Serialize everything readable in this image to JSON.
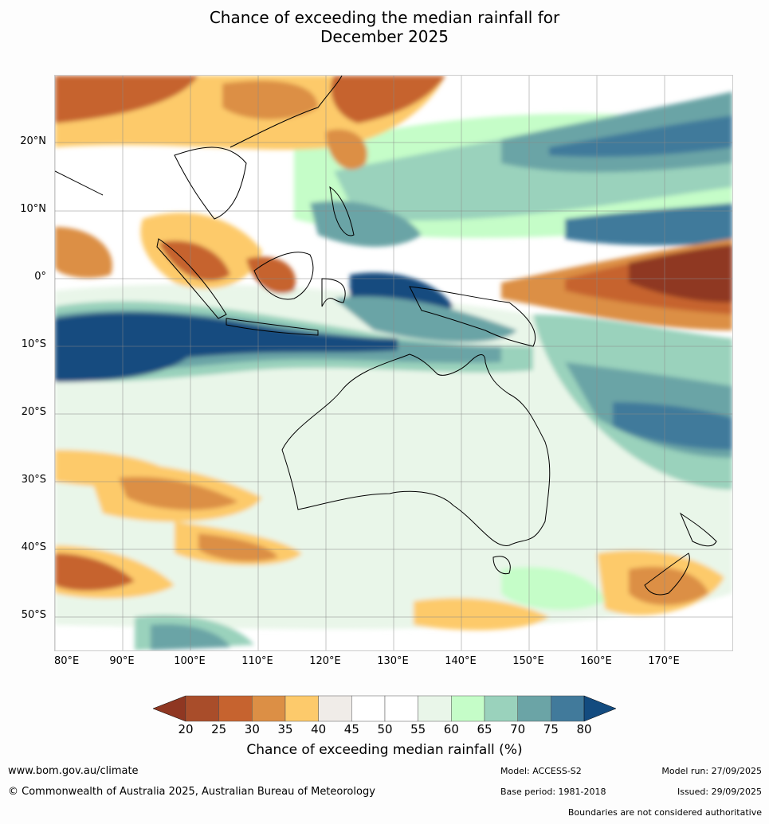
{
  "title_line1": "Chance of exceeding the median rainfall for",
  "title_line2": "December 2025",
  "lat_labels": [
    "20°N",
    "10°N",
    "0°",
    "10°S",
    "20°S",
    "30°S",
    "40°S",
    "50°S"
  ],
  "lon_labels": [
    "80°E",
    "90°E",
    "100°E",
    "110°E",
    "120°E",
    "130°E",
    "140°E",
    "150°E",
    "160°E",
    "170°E"
  ],
  "colorbar": {
    "ticks": [
      "20",
      "25",
      "30",
      "35",
      "40",
      "45",
      "50",
      "55",
      "60",
      "65",
      "70",
      "75",
      "80"
    ],
    "colors": [
      "#a94d2a",
      "#c6632f",
      "#dc8f45",
      "#fdca6b",
      "#f0ece8",
      "#ffffff",
      "#ffffff",
      "#e9f6e9",
      "#c5fdc8",
      "#9ad2bc",
      "#6ba4a6",
      "#417a9b"
    ],
    "under_color": "#8f3722",
    "over_color": "#134b7f",
    "label": "Chance of exceeding median rainfall (%)"
  },
  "footer": {
    "url": "www.bom.gov.au/climate",
    "copyright": "© Commonwealth of Australia 2025, Australian Bureau of Meteorology",
    "model": "Model: ACCESS-S2",
    "model_run": "Model run: 27/09/2025",
    "base_period": "Base period: 1981-2018",
    "issued": "Issued: 29/09/2025",
    "disclaimer": "Boundaries are not considered authoritative"
  }
}
